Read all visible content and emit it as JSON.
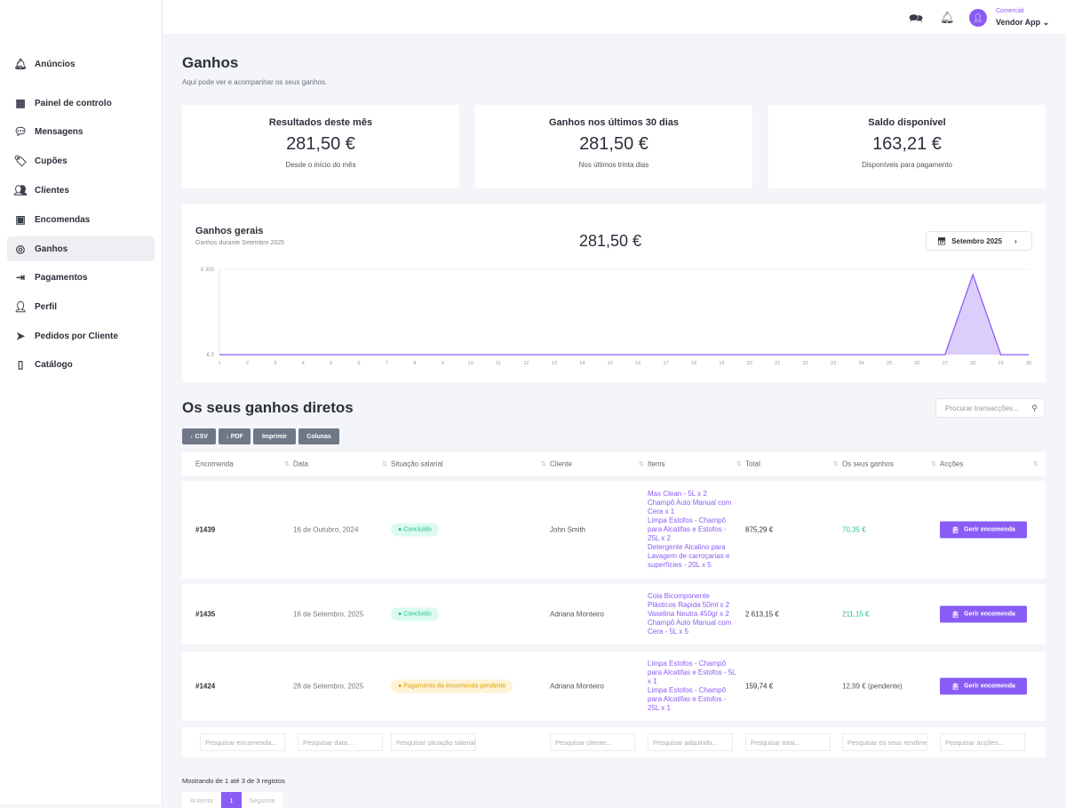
{
  "sidebar": {
    "items": [
      {
        "label": "Anúncios",
        "icon": "bell-icon"
      },
      {
        "label": "Painel de controlo",
        "icon": "dashboard-icon"
      },
      {
        "label": "Mensagens",
        "icon": "chat-icon"
      },
      {
        "label": "Cupões",
        "icon": "coupon-icon"
      },
      {
        "label": "Clientes",
        "icon": "users-icon"
      },
      {
        "label": "Encomendas",
        "icon": "box-icon"
      },
      {
        "label": "Ganhos",
        "icon": "coins-icon",
        "active": true
      },
      {
        "label": "Pagamentos",
        "icon": "payment-icon"
      },
      {
        "label": "Perfil",
        "icon": "profile-icon"
      },
      {
        "label": "Pedidos por Cliente",
        "icon": "send-icon"
      },
      {
        "label": "Catálogo",
        "icon": "book-icon"
      }
    ]
  },
  "topbar": {
    "role": "Comercial",
    "user": "Vendor App"
  },
  "page": {
    "title": "Ganhos",
    "subtitle": "Aqui pode ver e acompanhar os seus ganhos."
  },
  "cards": [
    {
      "title": "Resultados deste mês",
      "value": "281,50 €",
      "desc": "Desde o início do mês"
    },
    {
      "title": "Ganhos nos últimos 30 dias",
      "value": "281,50 €",
      "desc": "Nos últimos trinta dias"
    },
    {
      "title": "Saldo disponível",
      "value": "163,21 €",
      "desc": "Disponíveis para pagamento"
    }
  ],
  "chart": {
    "title": "Ganhos gerais",
    "subtitle": "Ganhos durante Setembro 2025",
    "total": "281,50 €",
    "month": "Setembro 2025"
  },
  "chart_data": {
    "type": "area",
    "x": [
      1,
      2,
      3,
      4,
      5,
      6,
      7,
      8,
      9,
      10,
      11,
      12,
      13,
      14,
      15,
      16,
      17,
      18,
      19,
      20,
      21,
      22,
      23,
      24,
      25,
      26,
      27,
      28,
      29,
      30
    ],
    "values": [
      0,
      0,
      0,
      0,
      0,
      0,
      0,
      0,
      0,
      0,
      0,
      0,
      0,
      0,
      0,
      0,
      0,
      0,
      0,
      0,
      0,
      0,
      0,
      0,
      0,
      0,
      0,
      281.5,
      0,
      0
    ],
    "yticks": [
      "€ 0",
      "€ 300"
    ],
    "ylim": [
      0,
      300
    ],
    "color": "#8a5cf6",
    "grid": false
  },
  "direct": {
    "title": "Os seus ganhos diretos",
    "search_placeholder": "Procurar transacções...",
    "buttons": [
      "↓ CSV",
      "↓ PDF",
      "Imprimir",
      "Colunas"
    ]
  },
  "table": {
    "headers": [
      "Encomenda",
      "Data",
      "Situação salarial",
      "Cliente",
      "Items",
      "Total",
      "Os seus ganhos",
      "Acções"
    ],
    "rows": [
      {
        "order": "#1439",
        "date": "16 de Outubro, 2024",
        "status": "Concluído",
        "status_type": "done",
        "client": "John Smith",
        "items": [
          "Max Clean - 5L x 2",
          "Champô Auto Manual com Cera x 1",
          "Limpa Estofos - Champô para Alcatifas e Estofos - 25L x 2",
          "Detergente Alcalino para Lavagem de carroçarias e superfícies - 20L x 5"
        ],
        "total": "875,29 €",
        "earn": "70,35 €",
        "action": "Gerir encomenda"
      },
      {
        "order": "#1435",
        "date": "16 de Setembro, 2025",
        "status": "Concluído",
        "status_type": "done",
        "client": "Adriana Monteiro",
        "items": [
          "Cola Bicomponente Plásticos Rapida 50ml x 2",
          "Vaselina Neutra 450gr x 2",
          "Champô Auto Manual com Cera - 5L x 5"
        ],
        "total": "2 613,15 €",
        "earn": "211,15 €",
        "action": "Gerir encomenda"
      },
      {
        "order": "#1424",
        "date": "28 de Setembro, 2025",
        "status": "Pagamento da encomenda pendente",
        "status_type": "pending",
        "client": "Adriana Monteiro",
        "items": [
          "Limpa Estofos - Champô para Alcatifas e Estofos - 5L x 1",
          "Limpa Estofos - Champô para Alcatifas e Estofos - 25L x 1"
        ],
        "total": "159,74 €",
        "earn": "12,99 € (pendente)",
        "action": "Gerir encomenda"
      }
    ],
    "filters": [
      "Pesquisar encomenda...",
      "Pesquisar data...",
      "Pesquisar situação salarial...",
      "Pesquisar cliente...",
      "Pesquisar adquirido...",
      "Pesquisar total...",
      "Pesquisar os seus rendimentos...",
      "Pesquisar acções..."
    ]
  },
  "pagination": {
    "info": "Mostrando de 1 até 3 de 3 registos",
    "prev": "Anterior",
    "current": "1",
    "next": "Seguinte"
  }
}
